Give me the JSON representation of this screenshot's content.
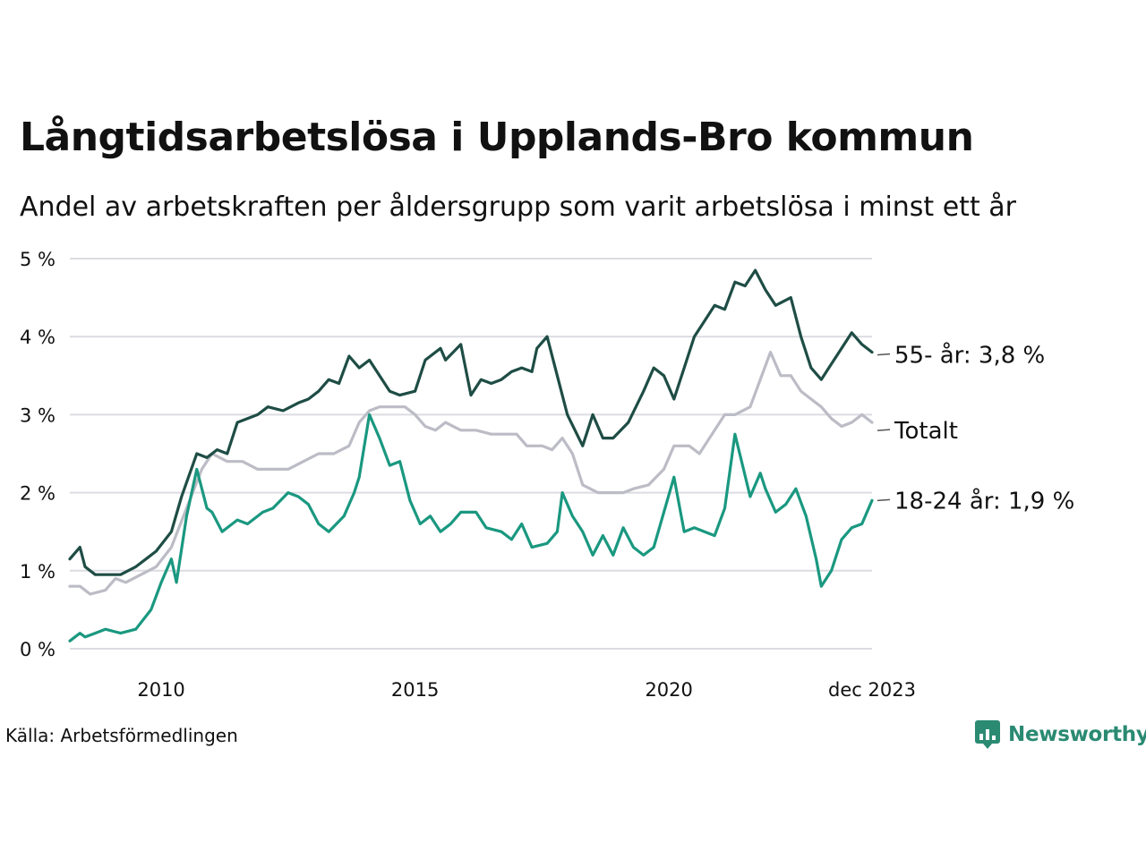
{
  "title": "Långtidsarbetslösa i Upplands-Bro kommun",
  "subtitle": "Andel av arbetskraften per åldersgrupp som varit arbetslösa i minst ett år",
  "source": "Källa: Arbetsförmedlingen",
  "brand": {
    "name": "Newsworthy",
    "icon": "newsworthy-logo-icon",
    "color": "#2a8a72"
  },
  "chart_data": {
    "type": "line",
    "title": "Långtidsarbetslösa i Upplands-Bro kommun",
    "xlabel": "",
    "ylabel": "",
    "xlim": [
      2008.2,
      2024.0
    ],
    "ylim": [
      0,
      5
    ],
    "y_ticks": [
      0,
      1,
      2,
      3,
      4,
      5
    ],
    "y_tick_labels": [
      "0 %",
      "1 %",
      "2 %",
      "3 %",
      "4 %",
      "5 %"
    ],
    "x_ticks": [
      2010,
      2015,
      2020,
      2024.0
    ],
    "x_tick_labels": [
      "2010",
      "2015",
      "2020",
      "dec 2023"
    ],
    "grid": true,
    "series": [
      {
        "name": "55- år",
        "label": "55- år: 3,8 %",
        "color": "#1e4d45",
        "x": [
          2008.2,
          2008.4,
          2008.5,
          2008.7,
          2008.9,
          2009.2,
          2009.5,
          2009.7,
          2009.9,
          2010.2,
          2010.4,
          2010.7,
          2010.9,
          2011.1,
          2011.3,
          2011.5,
          2011.9,
          2012.1,
          2012.4,
          2012.7,
          2012.9,
          2013.1,
          2013.3,
          2013.5,
          2013.7,
          2013.9,
          2014.1,
          2014.3,
          2014.5,
          2014.7,
          2015.0,
          2015.2,
          2015.5,
          2015.6,
          2015.9,
          2016.1,
          2016.3,
          2016.5,
          2016.7,
          2016.9,
          2017.1,
          2017.3,
          2017.4,
          2017.6,
          2017.8,
          2018.0,
          2018.3,
          2018.5,
          2018.7,
          2018.9,
          2019.2,
          2019.5,
          2019.7,
          2019.9,
          2020.1,
          2020.3,
          2020.5,
          2020.7,
          2020.9,
          2021.1,
          2021.3,
          2021.5,
          2021.7,
          2021.9,
          2022.1,
          2022.4,
          2022.6,
          2022.8,
          2023.0,
          2023.2,
          2023.4,
          2023.6,
          2023.8,
          2024.0
        ],
        "values": [
          1.15,
          1.3,
          1.05,
          0.95,
          0.95,
          0.95,
          1.05,
          1.15,
          1.25,
          1.5,
          1.95,
          2.5,
          2.45,
          2.55,
          2.5,
          2.9,
          3.0,
          3.1,
          3.05,
          3.15,
          3.2,
          3.3,
          3.45,
          3.4,
          3.75,
          3.6,
          3.7,
          3.5,
          3.3,
          3.25,
          3.3,
          3.7,
          3.85,
          3.7,
          3.9,
          3.25,
          3.45,
          3.4,
          3.45,
          3.55,
          3.6,
          3.55,
          3.85,
          4.0,
          3.5,
          3.0,
          2.6,
          3.0,
          2.7,
          2.7,
          2.9,
          3.3,
          3.6,
          3.5,
          3.2,
          3.6,
          4.0,
          4.2,
          4.4,
          4.35,
          4.7,
          4.65,
          4.85,
          4.6,
          4.4,
          4.5,
          4.0,
          3.6,
          3.45,
          3.65,
          3.85,
          4.05,
          3.9,
          3.8
        ]
      },
      {
        "name": "Totalt",
        "label": "Totalt",
        "color": "#bcbcc6",
        "x": [
          2008.2,
          2008.4,
          2008.6,
          2008.9,
          2009.1,
          2009.3,
          2009.6,
          2009.9,
          2010.2,
          2010.5,
          2010.8,
          2011.0,
          2011.3,
          2011.6,
          2011.9,
          2012.2,
          2012.5,
          2012.8,
          2013.1,
          2013.4,
          2013.7,
          2013.9,
          2014.1,
          2014.3,
          2014.5,
          2014.8,
          2015.0,
          2015.2,
          2015.4,
          2015.6,
          2015.9,
          2016.2,
          2016.5,
          2016.8,
          2017.0,
          2017.2,
          2017.5,
          2017.7,
          2017.9,
          2018.1,
          2018.3,
          2018.6,
          2018.8,
          2019.1,
          2019.3,
          2019.6,
          2019.9,
          2020.1,
          2020.4,
          2020.6,
          2020.9,
          2021.1,
          2021.3,
          2021.6,
          2021.8,
          2022.0,
          2022.2,
          2022.4,
          2022.6,
          2022.8,
          2023.0,
          2023.2,
          2023.4,
          2023.6,
          2023.8,
          2024.0
        ],
        "values": [
          0.8,
          0.8,
          0.7,
          0.75,
          0.9,
          0.85,
          0.95,
          1.05,
          1.3,
          1.8,
          2.3,
          2.5,
          2.4,
          2.4,
          2.3,
          2.3,
          2.3,
          2.4,
          2.5,
          2.5,
          2.6,
          2.9,
          3.05,
          3.1,
          3.1,
          3.1,
          3.0,
          2.85,
          2.8,
          2.9,
          2.8,
          2.8,
          2.75,
          2.75,
          2.75,
          2.6,
          2.6,
          2.55,
          2.7,
          2.5,
          2.1,
          2.0,
          2.0,
          2.0,
          2.05,
          2.1,
          2.3,
          2.6,
          2.6,
          2.5,
          2.8,
          3.0,
          3.0,
          3.1,
          3.45,
          3.8,
          3.5,
          3.5,
          3.3,
          3.2,
          3.1,
          2.95,
          2.85,
          2.9,
          3.0,
          2.9
        ]
      },
      {
        "name": "18-24 år",
        "label": "18-24 år: 1,9 %",
        "color": "#1a9880",
        "x": [
          2008.2,
          2008.4,
          2008.5,
          2008.7,
          2008.9,
          2009.2,
          2009.5,
          2009.8,
          2010.0,
          2010.2,
          2010.3,
          2010.5,
          2010.7,
          2010.9,
          2011.0,
          2011.2,
          2011.5,
          2011.7,
          2012.0,
          2012.2,
          2012.5,
          2012.7,
          2012.9,
          2013.1,
          2013.3,
          2013.6,
          2013.8,
          2013.9,
          2014.1,
          2014.3,
          2014.5,
          2014.7,
          2014.9,
          2015.1,
          2015.3,
          2015.5,
          2015.7,
          2015.9,
          2016.2,
          2016.4,
          2016.7,
          2016.9,
          2017.1,
          2017.3,
          2017.6,
          2017.8,
          2017.9,
          2018.1,
          2018.3,
          2018.5,
          2018.7,
          2018.9,
          2019.1,
          2019.3,
          2019.5,
          2019.7,
          2019.9,
          2020.1,
          2020.3,
          2020.5,
          2020.7,
          2020.9,
          2021.1,
          2021.3,
          2021.6,
          2021.8,
          2021.9,
          2022.1,
          2022.3,
          2022.5,
          2022.7,
          2022.9,
          2023.0,
          2023.2,
          2023.4,
          2023.6,
          2023.8,
          2024.0
        ],
        "values": [
          0.1,
          0.2,
          0.15,
          0.2,
          0.25,
          0.2,
          0.25,
          0.5,
          0.85,
          1.15,
          0.85,
          1.7,
          2.3,
          1.8,
          1.75,
          1.5,
          1.65,
          1.6,
          1.75,
          1.8,
          2.0,
          1.95,
          1.85,
          1.6,
          1.5,
          1.7,
          2.0,
          2.2,
          3.0,
          2.7,
          2.35,
          2.4,
          1.9,
          1.6,
          1.7,
          1.5,
          1.6,
          1.75,
          1.75,
          1.55,
          1.5,
          1.4,
          1.6,
          1.3,
          1.35,
          1.5,
          2.0,
          1.7,
          1.5,
          1.2,
          1.45,
          1.2,
          1.55,
          1.3,
          1.2,
          1.3,
          1.75,
          2.2,
          1.5,
          1.55,
          1.5,
          1.45,
          1.8,
          2.75,
          1.95,
          2.25,
          2.05,
          1.75,
          1.85,
          2.05,
          1.7,
          1.15,
          0.8,
          1.0,
          1.4,
          1.55,
          1.6,
          1.9
        ]
      }
    ]
  }
}
